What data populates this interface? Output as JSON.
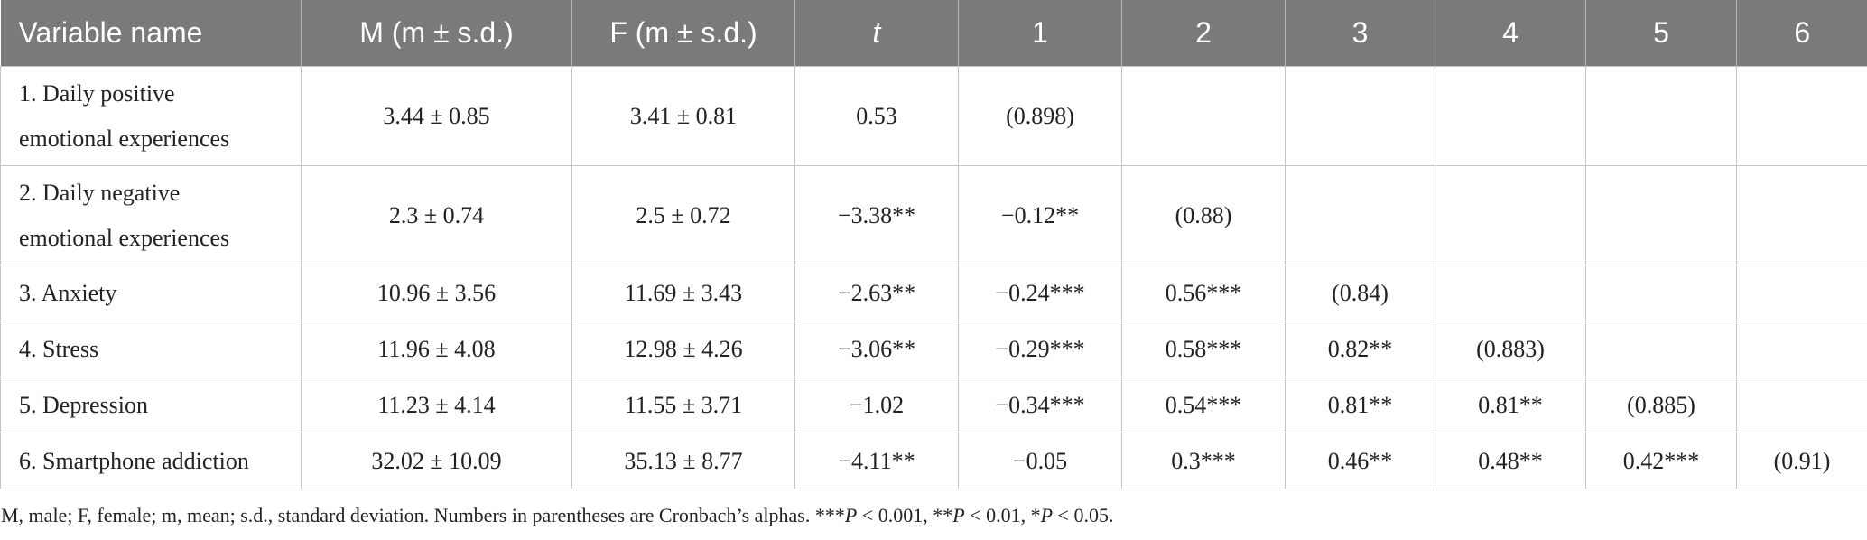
{
  "header": {
    "col0": "Variable name",
    "col1": "M (m ± s.d.)",
    "col2": "F (m ± s.d.)",
    "col3": "t",
    "col4": "1",
    "col5": "2",
    "col6": "3",
    "col7": "4",
    "col8": "5",
    "col9": "6"
  },
  "rows": [
    {
      "name_line1": "1. Daily positive",
      "name_line2": "emotional experiences",
      "m": "3.44 ± 0.85",
      "f": "3.41 ± 0.81",
      "t": "0.53",
      "c1": "(0.898)",
      "c2": "",
      "c3": "",
      "c4": "",
      "c5": "",
      "c6": ""
    },
    {
      "name_line1": "2. Daily negative",
      "name_line2": "emotional experiences",
      "m": "2.3 ± 0.74",
      "f": "2.5 ± 0.72",
      "t": "−3.38**",
      "c1": "−0.12**",
      "c2": "(0.88)",
      "c3": "",
      "c4": "",
      "c5": "",
      "c6": ""
    },
    {
      "name_line1": "3. Anxiety",
      "m": "10.96 ± 3.56",
      "f": "11.69 ± 3.43",
      "t": "−2.63**",
      "c1": "−0.24***",
      "c2": "0.56***",
      "c3": "(0.84)",
      "c4": "",
      "c5": "",
      "c6": ""
    },
    {
      "name_line1": "4. Stress",
      "m": "11.96 ± 4.08",
      "f": "12.98 ± 4.26",
      "t": "−3.06**",
      "c1": "−0.29***",
      "c2": "0.58***",
      "c3": "0.82**",
      "c4": "(0.883)",
      "c5": "",
      "c6": ""
    },
    {
      "name_line1": "5. Depression",
      "m": "11.23 ± 4.14",
      "f": "11.55 ± 3.71",
      "t": "−1.02",
      "c1": "−0.34***",
      "c2": "0.54***",
      "c3": "0.81**",
      "c4": "0.81**",
      "c5": "(0.885)",
      "c6": ""
    },
    {
      "name_line1": "6. Smartphone addiction",
      "m": "32.02 ± 10.09",
      "f": "35.13 ± 8.77",
      "t": "−4.11**",
      "c1": "−0.05",
      "c2": "0.3***",
      "c3": "0.46**",
      "c4": "0.48**",
      "c5": "0.42***",
      "c6": "(0.91)"
    }
  ],
  "footnote": {
    "text_a": "M, male; F, female; m, mean; s.d., standard deviation. Numbers in parentheses are Cronbach’s alphas. ***",
    "p1": "P",
    "text_b": " < 0.001, **",
    "p2": "P",
    "text_c": " < 0.01, *",
    "p3": "P",
    "text_d": " < 0.05."
  },
  "colors": {
    "header_bg": "#7a7a7a",
    "header_text": "#ffffff",
    "grid": "#c4c4c4"
  }
}
